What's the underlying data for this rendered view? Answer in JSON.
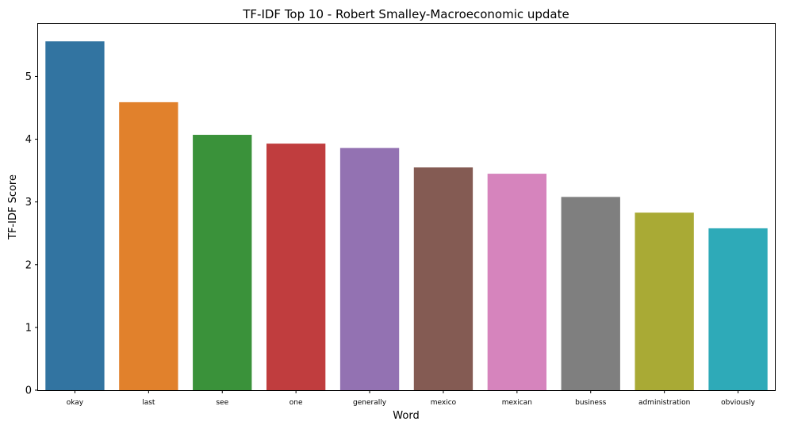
{
  "chart_data": {
    "type": "bar",
    "title": "TF-IDF Top 10 - Robert Smalley-Macroeconomic update",
    "xlabel": "Word",
    "ylabel": "TF-IDF Score",
    "categories": [
      "okay",
      "last",
      "see",
      "one",
      "generally",
      "mexico",
      "mexican",
      "business",
      "administration",
      "obviously"
    ],
    "values": [
      5.56,
      4.59,
      4.07,
      3.93,
      3.86,
      3.55,
      3.45,
      3.08,
      2.83,
      2.58
    ],
    "colors": [
      "#3274a1",
      "#e1812c",
      "#3a923a",
      "#c03d3e",
      "#9372b2",
      "#845b53",
      "#d684bd",
      "#7f7f7f",
      "#a9aa35",
      "#2eaab8"
    ],
    "yticks": [
      0,
      1,
      2,
      3,
      4,
      5
    ],
    "ylim": [
      0,
      5.84
    ],
    "grid": false,
    "legend": "none"
  }
}
